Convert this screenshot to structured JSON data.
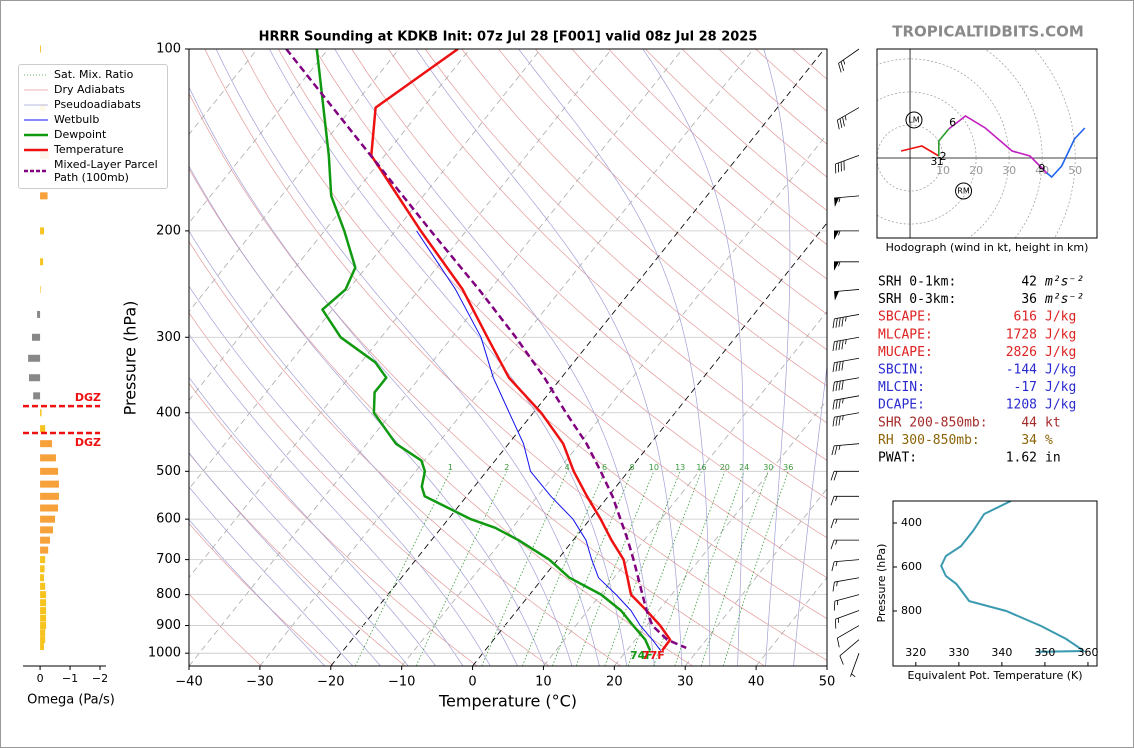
{
  "watermark": "TROPICALTIDBITS.COM",
  "chart_data": [
    {
      "type": "skewt",
      "title": "HRRR Sounding at KDKB Init: 07z Jul 28 [F001] valid 08z Jul 28 2025",
      "xlabel": "Temperature (°C)",
      "ylabel": "Pressure (hPa)",
      "xlim": [
        -40,
        50
      ],
      "ylim": [
        1050,
        100
      ],
      "log_y": true,
      "grid": true,
      "xticks": [
        {
          "value": -40,
          "label": "−40"
        },
        {
          "value": -30,
          "label": "−30"
        },
        {
          "value": -20,
          "label": "−20"
        },
        {
          "value": -10,
          "label": "−10"
        },
        0,
        10,
        20,
        30,
        40,
        50
      ],
      "yticks": [
        100,
        200,
        300,
        400,
        500,
        600,
        700,
        800,
        900,
        1000
      ],
      "highlight_isotherms": [
        -20,
        0
      ],
      "mixing_ratios": [
        1,
        2,
        4,
        6,
        8,
        10,
        13,
        16,
        20,
        24,
        30,
        36
      ],
      "reference_lines": [
        {
          "name": "Sat. Mix. Ratio",
          "color": "#3a9a3a",
          "style": "dotted"
        },
        {
          "name": "Dry Adiabats",
          "color": "#e49a9a",
          "style": "solid"
        },
        {
          "name": "Pseudoadiabats",
          "color": "#a0a0d8",
          "style": "solid"
        }
      ],
      "series": [
        {
          "name": "Wetbulb",
          "color": "#1111ee",
          "style": "solid",
          "width": 1,
          "pressure": [
            200,
            250,
            300,
            350,
            400,
            450,
            500,
            550,
            600,
            650,
            700,
            750,
            800,
            850,
            900,
            950,
            990
          ],
          "values": [
            -57,
            -44.9,
            -35.9,
            -29.6,
            -23.4,
            -17.9,
            -13.8,
            -8.1,
            -2.4,
            1.8,
            4.8,
            7.8,
            12.2,
            16.1,
            19.1,
            22.4,
            24.8
          ]
        },
        {
          "name": "Dewpoint",
          "color": "#119911",
          "style": "solid",
          "width": 2.5,
          "pressure": [
            100,
            150,
            175,
            200,
            230,
            250,
            270,
            300,
            330,
            350,
            370,
            400,
            450,
            480,
            500,
            530,
            550,
            600,
            620,
            650,
            700,
            750,
            800,
            850,
            900,
            950,
            990
          ],
          "values": [
            -91.6,
            -77.9,
            -73,
            -67.2,
            -61.5,
            -60.4,
            -61.4,
            -55.7,
            -48,
            -44.7,
            -44.7,
            -42.5,
            -35.9,
            -30.4,
            -28.7,
            -27.4,
            -25.9,
            -16.8,
            -12.4,
            -7.7,
            -1.2,
            3.7,
            10.1,
            14.7,
            18.1,
            21.4,
            23.3
          ]
        },
        {
          "name": "Temperature",
          "color": "#ee1111",
          "style": "solid",
          "width": 2.5,
          "pressure": [
            100,
            125,
            150,
            200,
            250,
            300,
            350,
            400,
            450,
            500,
            550,
            600,
            650,
            700,
            750,
            800,
            850,
            900,
            950,
            990
          ],
          "values": [
            -71.7,
            -76.7,
            -71.9,
            -56.4,
            -43.9,
            -35,
            -27.4,
            -18.9,
            -12.3,
            -7.7,
            -3,
            1.5,
            5.4,
            9.3,
            11.9,
            14.3,
            18.3,
            21.9,
            24.9,
            25
          ]
        },
        {
          "name": "Mixed-Layer Parcel Path (100mb)",
          "color": "#800080",
          "style": "dashed",
          "width": 2.5,
          "pressure": [
            100,
            150,
            200,
            250,
            300,
            350,
            400,
            450,
            500,
            550,
            600,
            650,
            700,
            750,
            800,
            850,
            900,
            950,
            980
          ],
          "values": [
            -95.9,
            -72,
            -55,
            -41.6,
            -31,
            -22.4,
            -15.4,
            -9,
            -3.9,
            0.6,
            4.3,
            7.7,
            10.7,
            13.4,
            15.9,
            18.3,
            20.8,
            24.5,
            28.1
          ]
        }
      ],
      "surface_labels": {
        "temperature": "77F",
        "dewpoint": "74F"
      },
      "wind_barbs": {
        "pressure": [
          100,
          125,
          150,
          175,
          200,
          225,
          250,
          275,
          300,
          325,
          350,
          375,
          400,
          450,
          500,
          550,
          600,
          650,
          700,
          750,
          800,
          850,
          900,
          950,
          1000
        ],
        "speed": [
          25,
          35,
          40,
          55,
          55,
          55,
          50,
          45,
          45,
          40,
          40,
          35,
          35,
          25,
          20,
          15,
          15,
          15,
          15,
          15,
          15,
          15,
          10,
          10,
          5
        ],
        "direction": [
          235,
          240,
          250,
          265,
          270,
          270,
          265,
          260,
          260,
          260,
          260,
          260,
          260,
          265,
          270,
          270,
          270,
          270,
          265,
          260,
          255,
          250,
          240,
          230,
          200
        ]
      }
    },
    {
      "type": "hodograph",
      "title": "Hodograph (wind in kt, height in km)",
      "xlim": [
        -10,
        56.6
      ],
      "ylim": [
        -24,
        32.7
      ],
      "rings": [
        10,
        20,
        30,
        40,
        50
      ],
      "series": [
        {
          "color": "#ee1111",
          "u": [
            -2.7,
            3.6,
            8.7
          ],
          "v": [
            2.1,
            3.6,
            0.6
          ]
        },
        {
          "color": "#2a9a2a",
          "u": [
            8.7,
            8.7,
            11.7
          ],
          "v": [
            0.6,
            5.1,
            8.7
          ]
        },
        {
          "color": "#c020c0",
          "u": [
            11.7,
            16.8,
            22.8,
            30.9,
            36.3,
            41.4
          ],
          "v": [
            8.7,
            12.6,
            9,
            2.1,
            0.6,
            -4.5
          ]
        },
        {
          "color": "#2266ee",
          "u": [
            41.4,
            42.9,
            45.9,
            49.8,
            52.9
          ],
          "v": [
            -4.5,
            -5.7,
            -2.4,
            5.7,
            9
          ]
        }
      ],
      "height_labels": [
        {
          "label": "3",
          "u": 7.2,
          "v": -1.2
        },
        {
          "label": "1",
          "u": 9.1,
          "v": -1.2
        },
        {
          "label": "2",
          "u": 10,
          "v": 0.3
        },
        {
          "label": "6",
          "u": 12.9,
          "v": 10.5
        },
        {
          "label": "9",
          "u": 39.9,
          "v": -3.3
        }
      ],
      "storm_motion": [
        {
          "label": "LM",
          "u": 1.2,
          "v": 11.4
        },
        {
          "label": "RM",
          "u": 16.2,
          "v": -9.9
        }
      ]
    },
    {
      "type": "line",
      "xlabel": "Equivalent Pot. Temperature (K)",
      "ylabel": "Pressure (hPa)",
      "xlim": [
        314.7,
        362.1
      ],
      "ylim": [
        1050,
        300
      ],
      "xticks": [
        320,
        330,
        340,
        350,
        360
      ],
      "yticks": [
        400,
        600,
        800
      ],
      "color": "#3a9ab0",
      "pressure": [
        300,
        359,
        436,
        505,
        550,
        595,
        641,
        677,
        718,
        755,
        800,
        868,
        927,
        973,
        982,
        986
      ],
      "values": [
        342.1,
        335.9,
        333.3,
        330.5,
        327,
        325.9,
        327,
        329.4,
        331,
        332.4,
        341,
        349.1,
        354.9,
        358.4,
        358.9,
        348
      ]
    },
    {
      "type": "bar",
      "orientation": "horizontal",
      "xlabel": "Omega (Pa/s)",
      "xlim": [
        0.57,
        -2.2
      ],
      "xticks": [
        0,
        {
          "value": -1,
          "label": "−1"
        },
        {
          "value": -2,
          "label": "−2"
        }
      ],
      "pressure": [
        100,
        125,
        150,
        175,
        200,
        225,
        250,
        275,
        300,
        325,
        350,
        375,
        400,
        425,
        450,
        475,
        500,
        525,
        550,
        575,
        600,
        625,
        650,
        675,
        700,
        725,
        750,
        775,
        800,
        825,
        850,
        875,
        900,
        925,
        950,
        975
      ],
      "values": [
        -0.03,
        -0.17,
        -0.3,
        -0.25,
        -0.13,
        -0.1,
        -0.02,
        0.1,
        0.27,
        0.4,
        0.37,
        0.23,
        -0.05,
        -0.17,
        -0.4,
        -0.53,
        -0.6,
        -0.63,
        -0.63,
        -0.6,
        -0.5,
        -0.43,
        -0.33,
        -0.27,
        -0.17,
        -0.15,
        -0.13,
        -0.17,
        -0.2,
        -0.2,
        -0.2,
        -0.2,
        -0.2,
        -0.17,
        -0.17,
        -0.13
      ],
      "colors": [
        "#f7c31f",
        "#f7c31f",
        "#f7a13a",
        "#f7a13a",
        "#f7c31f",
        "#f7c31f",
        "#f7c31f",
        "#888888",
        "#888888",
        "#888888",
        "#888888",
        "#888888",
        "#f7c31f",
        "#f7c31f",
        "#f7a13a",
        "#f7a13a",
        "#f7a13a",
        "#f7a13a",
        "#f7a13a",
        "#f7a13a",
        "#f7a13a",
        "#f7a13a",
        "#f7a13a",
        "#f7a13a",
        "#f7c31f",
        "#f7c31f",
        "#f7c31f",
        "#f7c31f",
        "#f7c31f",
        "#f7c31f",
        "#f7c31f",
        "#f7c31f",
        "#f7c31f",
        "#f7c31f",
        "#f7c31f",
        "#f7c31f"
      ],
      "dgz": {
        "color": "#ee1111",
        "pressures": [
          390,
          432
        ],
        "labels": [
          "DGZ",
          "DGZ"
        ]
      }
    }
  ],
  "indices": {
    "rows": [
      {
        "label": "SRH 0-1km:",
        "value": 42,
        "unit": "m²s⁻²",
        "color": "#000000"
      },
      {
        "label": "SRH 0-3km:",
        "value": 36,
        "unit": "m²s⁻²",
        "color": "#000000"
      },
      {
        "label": "SBCAPE:",
        "value": 616,
        "unit": "J/kg",
        "color": "#dd2222"
      },
      {
        "label": "MLCAPE:",
        "value": 1728,
        "unit": "J/kg",
        "color": "#dd2222"
      },
      {
        "label": "MUCAPE:",
        "value": 2826,
        "unit": "J/kg",
        "color": "#dd2222"
      },
      {
        "label": "SBCIN:",
        "value": -144,
        "unit": "J/kg",
        "color": "#2a2ad0"
      },
      {
        "label": "MLCIN:",
        "value": -17,
        "unit": "J/kg",
        "color": "#2a2ad0"
      },
      {
        "label": "DCAPE:",
        "value": 1208,
        "unit": "J/kg",
        "color": "#2a2ad0"
      },
      {
        "label": "SHR 200-850mb:",
        "value": 44,
        "unit": "kt",
        "color": "#a52a2a"
      },
      {
        "label": "RH 300-850mb:",
        "value": 34,
        "unit": "%",
        "color": "#8b6508"
      },
      {
        "label": "PWAT:",
        "value": 1.62,
        "unit": "in",
        "color": "#000000"
      }
    ]
  }
}
